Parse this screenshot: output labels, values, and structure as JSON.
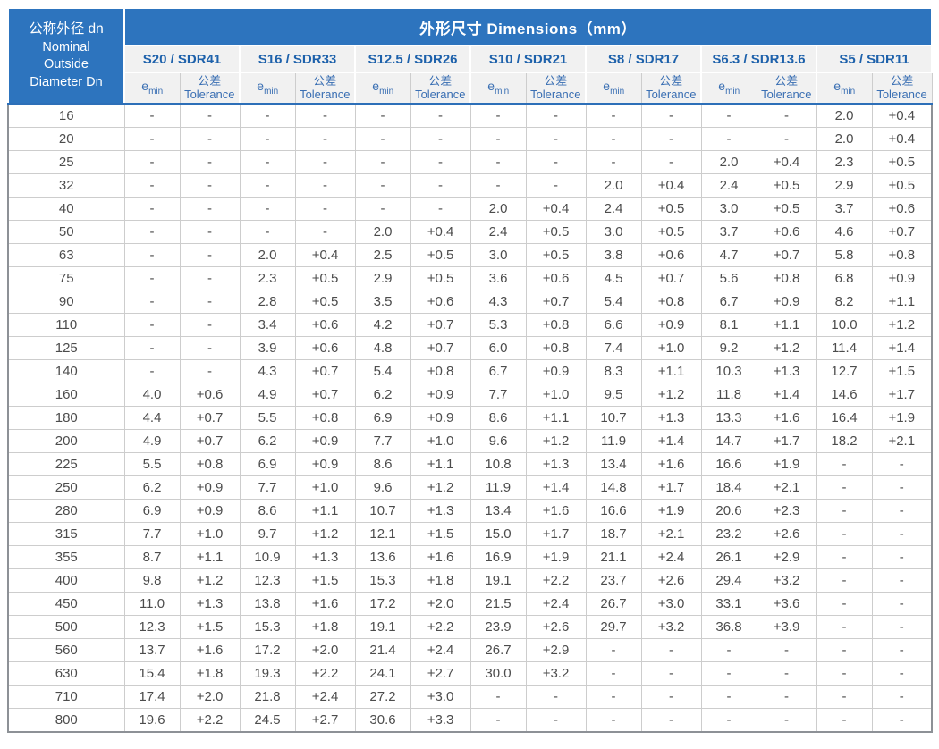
{
  "colors": {
    "header_blue": "#2d74be",
    "subheader_bg": "#f1f1f1",
    "series_text_blue": "#1d61ab",
    "subheader_text_blue": "#3a6fb3",
    "data_text": "#4c4c4c",
    "grid_line": "#cdcdcd",
    "outer_border": "#8d9196",
    "header_underline": "#2d6fb8"
  },
  "table": {
    "corner": {
      "line1": "公称外径 dn",
      "line2": "Nominal",
      "line3": "Outside",
      "line4": "Diameter Dn"
    },
    "main_header": "外形尺寸 Dimensions（mm）",
    "series": [
      "S20 / SDR41",
      "S16 / SDR33",
      "S12.5 / SDR26",
      "S10 / SDR21",
      "S8 / SDR17",
      "S6.3 / SDR13.6",
      "S5 / SDR11"
    ],
    "sub_headers": {
      "emin_base": "e",
      "emin_sub": "min",
      "tolerance_zh": "公差",
      "tolerance_en": "Tolerance"
    },
    "rows": [
      {
        "dn": "16",
        "cells": [
          "-",
          "-",
          "-",
          "-",
          "-",
          "-",
          "-",
          "-",
          "-",
          "-",
          "-",
          "-",
          "2.0",
          "+0.4"
        ]
      },
      {
        "dn": "20",
        "cells": [
          "-",
          "-",
          "-",
          "-",
          "-",
          "-",
          "-",
          "-",
          "-",
          "-",
          "-",
          "-",
          "2.0",
          "+0.4"
        ]
      },
      {
        "dn": "25",
        "cells": [
          "-",
          "-",
          "-",
          "-",
          "-",
          "-",
          "-",
          "-",
          "-",
          "-",
          "2.0",
          "+0.4",
          "2.3",
          "+0.5"
        ]
      },
      {
        "dn": "32",
        "cells": [
          "-",
          "-",
          "-",
          "-",
          "-",
          "-",
          "-",
          "-",
          "2.0",
          "+0.4",
          "2.4",
          "+0.5",
          "2.9",
          "+0.5"
        ]
      },
      {
        "dn": "40",
        "cells": [
          "-",
          "-",
          "-",
          "-",
          "-",
          "-",
          "2.0",
          "+0.4",
          "2.4",
          "+0.5",
          "3.0",
          "+0.5",
          "3.7",
          "+0.6"
        ]
      },
      {
        "dn": "50",
        "cells": [
          "-",
          "-",
          "-",
          "-",
          "2.0",
          "+0.4",
          "2.4",
          "+0.5",
          "3.0",
          "+0.5",
          "3.7",
          "+0.6",
          "4.6",
          "+0.7"
        ]
      },
      {
        "dn": "63",
        "cells": [
          "-",
          "-",
          "2.0",
          "+0.4",
          "2.5",
          "+0.5",
          "3.0",
          "+0.5",
          "3.8",
          "+0.6",
          "4.7",
          "+0.7",
          "5.8",
          "+0.8"
        ]
      },
      {
        "dn": "75",
        "cells": [
          "-",
          "-",
          "2.3",
          "+0.5",
          "2.9",
          "+0.5",
          "3.6",
          "+0.6",
          "4.5",
          "+0.7",
          "5.6",
          "+0.8",
          "6.8",
          "+0.9"
        ]
      },
      {
        "dn": "90",
        "cells": [
          "-",
          "-",
          "2.8",
          "+0.5",
          "3.5",
          "+0.6",
          "4.3",
          "+0.7",
          "5.4",
          "+0.8",
          "6.7",
          "+0.9",
          "8.2",
          "+1.1"
        ]
      },
      {
        "dn": "110",
        "cells": [
          "-",
          "-",
          "3.4",
          "+0.6",
          "4.2",
          "+0.7",
          "5.3",
          "+0.8",
          "6.6",
          "+0.9",
          "8.1",
          "+1.1",
          "10.0",
          "+1.2"
        ]
      },
      {
        "dn": "125",
        "cells": [
          "-",
          "-",
          "3.9",
          "+0.6",
          "4.8",
          "+0.7",
          "6.0",
          "+0.8",
          "7.4",
          "+1.0",
          "9.2",
          "+1.2",
          "11.4",
          "+1.4"
        ]
      },
      {
        "dn": "140",
        "cells": [
          "-",
          "-",
          "4.3",
          "+0.7",
          "5.4",
          "+0.8",
          "6.7",
          "+0.9",
          "8.3",
          "+1.1",
          "10.3",
          "+1.3",
          "12.7",
          "+1.5"
        ]
      },
      {
        "dn": "160",
        "cells": [
          "4.0",
          "+0.6",
          "4.9",
          "+0.7",
          "6.2",
          "+0.9",
          "7.7",
          "+1.0",
          "9.5",
          "+1.2",
          "11.8",
          "+1.4",
          "14.6",
          "+1.7"
        ]
      },
      {
        "dn": "180",
        "cells": [
          "4.4",
          "+0.7",
          "5.5",
          "+0.8",
          "6.9",
          "+0.9",
          "8.6",
          "+1.1",
          "10.7",
          "+1.3",
          "13.3",
          "+1.6",
          "16.4",
          "+1.9"
        ]
      },
      {
        "dn": "200",
        "cells": [
          "4.9",
          "+0.7",
          "6.2",
          "+0.9",
          "7.7",
          "+1.0",
          "9.6",
          "+1.2",
          "11.9",
          "+1.4",
          "14.7",
          "+1.7",
          "18.2",
          "+2.1"
        ]
      },
      {
        "dn": "225",
        "cells": [
          "5.5",
          "+0.8",
          "6.9",
          "+0.9",
          "8.6",
          "+1.1",
          "10.8",
          "+1.3",
          "13.4",
          "+1.6",
          "16.6",
          "+1.9",
          "-",
          "-"
        ]
      },
      {
        "dn": "250",
        "cells": [
          "6.2",
          "+0.9",
          "7.7",
          "+1.0",
          "9.6",
          "+1.2",
          "11.9",
          "+1.4",
          "14.8",
          "+1.7",
          "18.4",
          "+2.1",
          "-",
          "-"
        ]
      },
      {
        "dn": "280",
        "cells": [
          "6.9",
          "+0.9",
          "8.6",
          "+1.1",
          "10.7",
          "+1.3",
          "13.4",
          "+1.6",
          "16.6",
          "+1.9",
          "20.6",
          "+2.3",
          "-",
          "-"
        ]
      },
      {
        "dn": "315",
        "cells": [
          "7.7",
          "+1.0",
          "9.7",
          "+1.2",
          "12.1",
          "+1.5",
          "15.0",
          "+1.7",
          "18.7",
          "+2.1",
          "23.2",
          "+2.6",
          "-",
          "-"
        ]
      },
      {
        "dn": "355",
        "cells": [
          "8.7",
          "+1.1",
          "10.9",
          "+1.3",
          "13.6",
          "+1.6",
          "16.9",
          "+1.9",
          "21.1",
          "+2.4",
          "26.1",
          "+2.9",
          "-",
          "-"
        ]
      },
      {
        "dn": "400",
        "cells": [
          "9.8",
          "+1.2",
          "12.3",
          "+1.5",
          "15.3",
          "+1.8",
          "19.1",
          "+2.2",
          "23.7",
          "+2.6",
          "29.4",
          "+3.2",
          "-",
          "-"
        ]
      },
      {
        "dn": "450",
        "cells": [
          "11.0",
          "+1.3",
          "13.8",
          "+1.6",
          "17.2",
          "+2.0",
          "21.5",
          "+2.4",
          "26.7",
          "+3.0",
          "33.1",
          "+3.6",
          "-",
          "-"
        ]
      },
      {
        "dn": "500",
        "cells": [
          "12.3",
          "+1.5",
          "15.3",
          "+1.8",
          "19.1",
          "+2.2",
          "23.9",
          "+2.6",
          "29.7",
          "+3.2",
          "36.8",
          "+3.9",
          "-",
          "-"
        ]
      },
      {
        "dn": "560",
        "cells": [
          "13.7",
          "+1.6",
          "17.2",
          "+2.0",
          "21.4",
          "+2.4",
          "26.7",
          "+2.9",
          "-",
          "-",
          "-",
          "-",
          "-",
          "-"
        ]
      },
      {
        "dn": "630",
        "cells": [
          "15.4",
          "+1.8",
          "19.3",
          "+2.2",
          "24.1",
          "+2.7",
          "30.0",
          "+3.2",
          "-",
          "-",
          "-",
          "-",
          "-",
          "-"
        ]
      },
      {
        "dn": "710",
        "cells": [
          "17.4",
          "+2.0",
          "21.8",
          "+2.4",
          "27.2",
          "+3.0",
          "-",
          "-",
          "-",
          "-",
          "-",
          "-",
          "-",
          "-"
        ]
      },
      {
        "dn": "800",
        "cells": [
          "19.6",
          "+2.2",
          "24.5",
          "+2.7",
          "30.6",
          "+3.3",
          "-",
          "-",
          "-",
          "-",
          "-",
          "-",
          "-",
          "-"
        ]
      }
    ]
  }
}
